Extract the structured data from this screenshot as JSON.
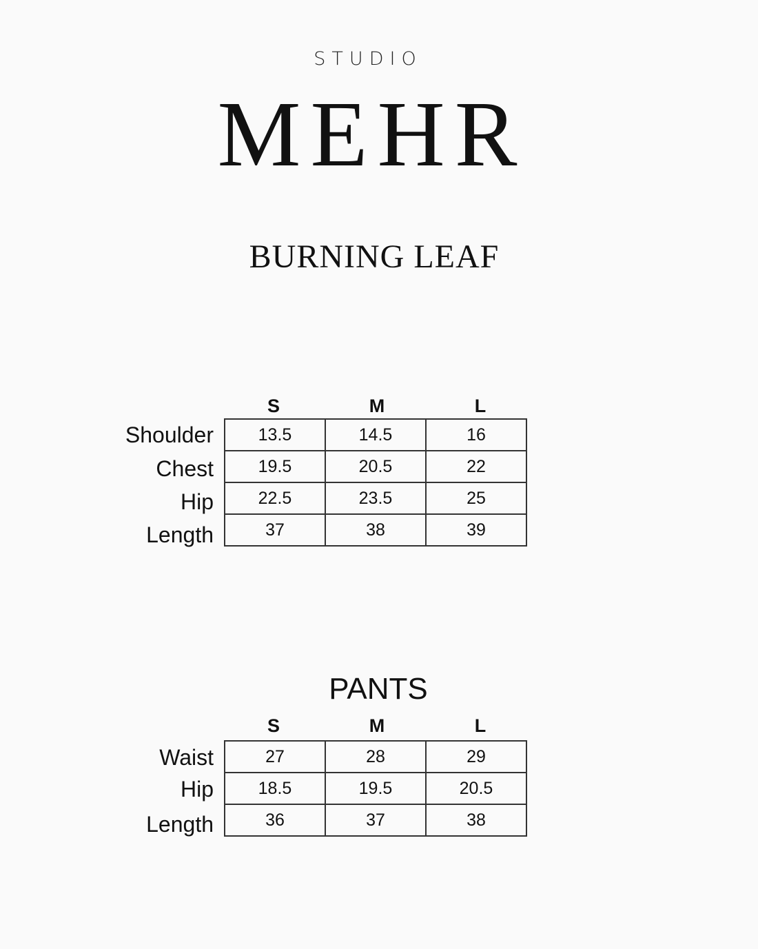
{
  "brand": {
    "prefix": "STUDIO",
    "name": "MEHR"
  },
  "collection": "BURNING LEAF",
  "top_chart": {
    "sizes": [
      "S",
      "M",
      "L"
    ],
    "rows": [
      {
        "label": "Shoulder",
        "values": [
          "13.5",
          "14.5",
          "16"
        ]
      },
      {
        "label": "Chest",
        "values": [
          "19.5",
          "20.5",
          "22"
        ]
      },
      {
        "label": "Hip",
        "values": [
          "22.5",
          "23.5",
          "25"
        ]
      },
      {
        "label": "Length",
        "values": [
          "37",
          "38",
          "39"
        ]
      }
    ]
  },
  "pants_chart": {
    "title": "PANTS",
    "sizes": [
      "S",
      "M",
      "L"
    ],
    "rows": [
      {
        "label": "Waist",
        "values": [
          "27",
          "28",
          "29"
        ]
      },
      {
        "label": "Hip",
        "values": [
          "18.5",
          "19.5",
          "20.5"
        ]
      },
      {
        "label": "Length",
        "values": [
          "36",
          "37",
          "38"
        ]
      }
    ]
  }
}
